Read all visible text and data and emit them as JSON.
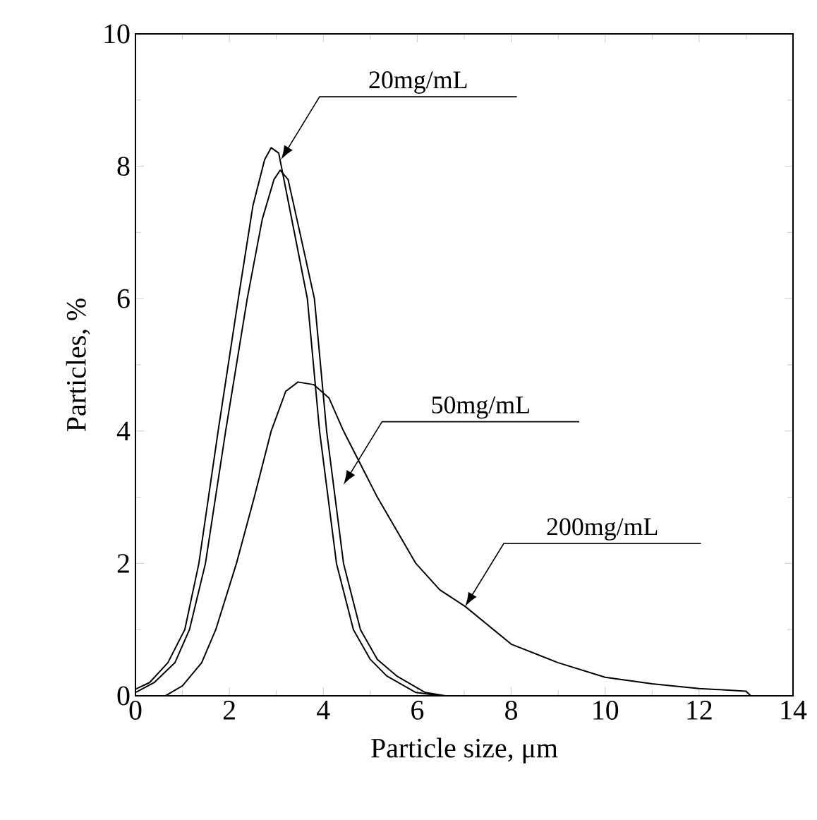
{
  "chart_data": {
    "type": "line",
    "xlabel": "Particle size, μm",
    "ylabel": "Particles, %",
    "xlim": [
      0,
      14
    ],
    "ylim": [
      0,
      10
    ],
    "xticks": [
      0,
      2,
      4,
      6,
      8,
      10,
      12,
      14
    ],
    "yticks": [
      0,
      2,
      4,
      6,
      8,
      10
    ],
    "grid": false,
    "marker": "none",
    "line_style": "solid",
    "series": [
      {
        "color": "#000000",
        "x": [
          0,
          0.3,
          0.69,
          1.05,
          1.35,
          1.76,
          2.19,
          2.5,
          2.75,
          2.89,
          3.05,
          3.3,
          3.66,
          3.92,
          4.28,
          4.64,
          5.0,
          5.35,
          5.97,
          6.5,
          7
        ],
        "values": [
          0.1,
          0.2,
          0.5,
          1,
          2,
          4,
          6,
          7.4,
          8.1,
          8.28,
          8.2,
          7.3,
          6,
          4,
          2,
          1,
          0.55,
          0.3,
          0.05,
          0,
          0
        ]
      },
      {
        "color": "#000000",
        "x": [
          0,
          0.4,
          0.84,
          1.15,
          1.49,
          1.92,
          2.38,
          2.7,
          2.95,
          3.08,
          3.25,
          3.5,
          3.81,
          4.07,
          4.43,
          4.79,
          5.15,
          5.56,
          6.17,
          6.6,
          7.1
        ],
        "values": [
          0.05,
          0.2,
          0.5,
          1,
          2,
          4,
          6,
          7.2,
          7.8,
          7.94,
          7.8,
          7.0,
          6,
          4,
          2,
          1,
          0.55,
          0.3,
          0.05,
          0,
          0
        ]
      },
      {
        "color": "#000000",
        "x": [
          0.64,
          1.0,
          1.41,
          1.71,
          2.15,
          2.53,
          2.89,
          3.2,
          3.46,
          3.8,
          4.12,
          4.43,
          5.15,
          5.97,
          6.48,
          7.02,
          8,
          9,
          10,
          11,
          12,
          13,
          13.1,
          14
        ],
        "values": [
          0,
          0.15,
          0.5,
          1,
          2,
          3,
          4,
          4.6,
          4.74,
          4.7,
          4.5,
          4,
          3,
          2,
          1.6,
          1.35,
          0.78,
          0.5,
          0.28,
          0.18,
          0.11,
          0.07,
          0,
          0
        ]
      }
    ],
    "annotations": [
      "20mg/mL",
      "50mg/mL",
      "200mg/mL"
    ]
  }
}
